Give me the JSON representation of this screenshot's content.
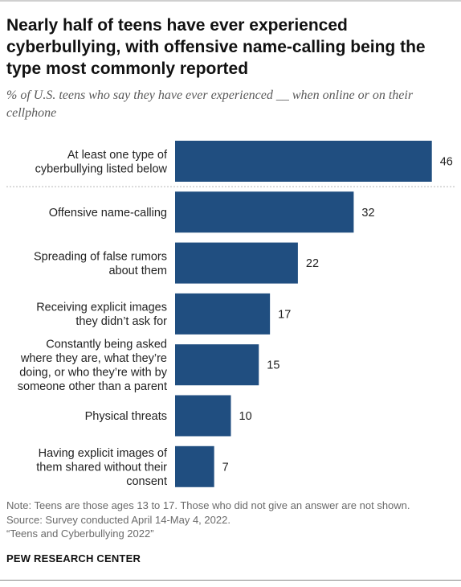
{
  "title": "Nearly half of teens have ever experienced cyberbullying, with offensive name-calling being the type most commonly reported",
  "subtitle": "% of U.S. teens who say they have ever experienced __ when online or on their cellphone",
  "colors": {
    "bar": "#204e80"
  },
  "chart_data": {
    "type": "bar",
    "orientation": "horizontal",
    "categories": [
      [
        "At least one type of",
        "cyberbullying listed below"
      ],
      [
        "Offensive name-calling"
      ],
      [
        "Spreading of false rumors",
        "about them"
      ],
      [
        "Receiving explicit images",
        "they didn’t ask for"
      ],
      [
        "Constantly being asked",
        "where they are, what they’re",
        "doing, or who they’re with by",
        "someone other than a parent"
      ],
      [
        "Physical threats"
      ],
      [
        "Having explicit images of",
        "them shared without their",
        "consent"
      ]
    ],
    "values": [
      46,
      32,
      22,
      17,
      15,
      10,
      7
    ],
    "grid": false
  },
  "notes": {
    "note": "Note: Teens are those ages 13 to 17. Those who did not give an answer are not shown.",
    "source": "Source: Survey conducted April 14-May 4, 2022.",
    "report": "“Teens and Cyberbullying 2022”"
  },
  "brand": "PEW RESEARCH CENTER"
}
